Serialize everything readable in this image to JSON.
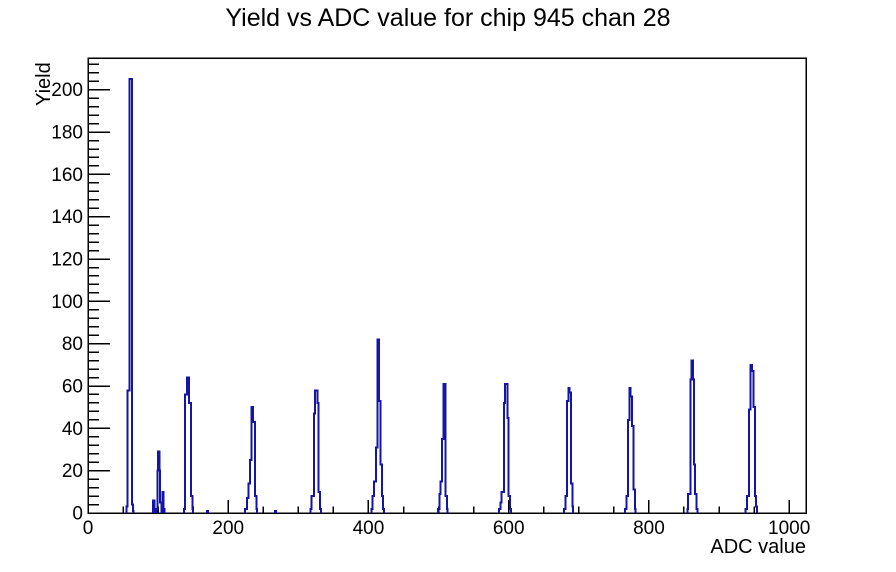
{
  "page": {
    "title": "Yield vs ADC value for chip 945 chan 28"
  },
  "chart_data": {
    "type": "bar",
    "style": "step-histogram",
    "title": "Yield vs ADC value for chip 945 chan 28",
    "xlabel": "ADC value",
    "ylabel": "Yield",
    "xlim": [
      0,
      1024
    ],
    "ylim": [
      0,
      215
    ],
    "x_major_ticks": [
      0,
      200,
      400,
      600,
      800,
      1000
    ],
    "x_minor_step": 50,
    "y_major_ticks": [
      0,
      20,
      40,
      60,
      80,
      100,
      120,
      140,
      160,
      180,
      200
    ],
    "y_minor_step": 4,
    "grid": false,
    "legend": false,
    "line_color": "#1414a6",
    "frame_color": "#000000",
    "background": "#ffffff",
    "peaks": [
      {
        "adc": 60,
        "yield": 205
      },
      {
        "adc": 100,
        "yield": 29
      },
      {
        "adc": 142,
        "yield": 64
      },
      {
        "adc": 234,
        "yield": 50
      },
      {
        "adc": 325,
        "yield": 58
      },
      {
        "adc": 414,
        "yield": 82
      },
      {
        "adc": 508,
        "yield": 61
      },
      {
        "adc": 596,
        "yield": 61
      },
      {
        "adc": 686,
        "yield": 59
      },
      {
        "adc": 773,
        "yield": 59
      },
      {
        "adc": 862,
        "yield": 72
      },
      {
        "adc": 946,
        "yield": 70
      }
    ],
    "bins": [
      [
        55,
        3
      ],
      [
        56,
        58
      ],
      [
        57,
        58
      ],
      [
        58,
        58
      ],
      [
        59,
        205
      ],
      [
        60,
        205
      ],
      [
        61,
        205
      ],
      [
        62,
        205
      ],
      [
        63,
        4
      ],
      [
        64,
        1
      ],
      [
        93,
        6
      ],
      [
        94,
        6
      ],
      [
        98,
        2
      ],
      [
        99,
        20
      ],
      [
        100,
        29
      ],
      [
        101,
        29
      ],
      [
        102,
        20
      ],
      [
        103,
        5
      ],
      [
        104,
        5
      ],
      [
        106,
        10
      ],
      [
        107,
        10
      ],
      [
        108,
        2
      ],
      [
        137,
        2
      ],
      [
        138,
        56
      ],
      [
        139,
        56
      ],
      [
        140,
        56
      ],
      [
        141,
        64
      ],
      [
        142,
        64
      ],
      [
        143,
        64
      ],
      [
        144,
        52
      ],
      [
        145,
        52
      ],
      [
        146,
        52
      ],
      [
        147,
        8
      ],
      [
        148,
        8
      ],
      [
        149,
        2
      ],
      [
        170,
        1
      ],
      [
        224,
        2
      ],
      [
        225,
        2
      ],
      [
        226,
        2
      ],
      [
        227,
        7
      ],
      [
        228,
        7
      ],
      [
        229,
        14
      ],
      [
        230,
        14
      ],
      [
        231,
        25
      ],
      [
        232,
        25
      ],
      [
        233,
        50
      ],
      [
        234,
        50
      ],
      [
        235,
        43
      ],
      [
        236,
        43
      ],
      [
        237,
        43
      ],
      [
        238,
        8
      ],
      [
        239,
        8
      ],
      [
        240,
        2
      ],
      [
        267,
        1
      ],
      [
        317,
        2
      ],
      [
        318,
        2
      ],
      [
        319,
        8
      ],
      [
        320,
        8
      ],
      [
        321,
        8
      ],
      [
        322,
        47
      ],
      [
        323,
        47
      ],
      [
        324,
        58
      ],
      [
        325,
        58
      ],
      [
        326,
        58
      ],
      [
        327,
        52
      ],
      [
        328,
        52
      ],
      [
        329,
        10
      ],
      [
        330,
        10
      ],
      [
        331,
        2
      ],
      [
        404,
        2
      ],
      [
        405,
        2
      ],
      [
        406,
        8
      ],
      [
        407,
        8
      ],
      [
        408,
        15
      ],
      [
        409,
        15
      ],
      [
        410,
        15
      ],
      [
        411,
        31
      ],
      [
        412,
        31
      ],
      [
        413,
        82
      ],
      [
        414,
        82
      ],
      [
        415,
        53
      ],
      [
        416,
        53
      ],
      [
        417,
        23
      ],
      [
        418,
        23
      ],
      [
        419,
        8
      ],
      [
        420,
        8
      ],
      [
        421,
        2
      ],
      [
        499,
        2
      ],
      [
        500,
        2
      ],
      [
        501,
        9
      ],
      [
        502,
        9
      ],
      [
        503,
        15
      ],
      [
        504,
        15
      ],
      [
        505,
        35
      ],
      [
        506,
        35
      ],
      [
        507,
        61
      ],
      [
        508,
        61
      ],
      [
        509,
        61
      ],
      [
        510,
        8
      ],
      [
        511,
        8
      ],
      [
        512,
        2
      ],
      [
        586,
        2
      ],
      [
        587,
        2
      ],
      [
        588,
        5
      ],
      [
        589,
        5
      ],
      [
        590,
        10
      ],
      [
        591,
        10
      ],
      [
        592,
        10
      ],
      [
        593,
        52
      ],
      [
        594,
        52
      ],
      [
        595,
        61
      ],
      [
        596,
        61
      ],
      [
        597,
        61
      ],
      [
        598,
        45
      ],
      [
        599,
        45
      ],
      [
        600,
        8
      ],
      [
        601,
        8
      ],
      [
        602,
        2
      ],
      [
        679,
        2
      ],
      [
        680,
        2
      ],
      [
        681,
        8
      ],
      [
        682,
        8
      ],
      [
        683,
        53
      ],
      [
        684,
        53
      ],
      [
        685,
        59
      ],
      [
        686,
        59
      ],
      [
        687,
        57
      ],
      [
        688,
        57
      ],
      [
        689,
        14
      ],
      [
        690,
        14
      ],
      [
        691,
        3
      ],
      [
        766,
        2
      ],
      [
        767,
        2
      ],
      [
        768,
        8
      ],
      [
        769,
        8
      ],
      [
        770,
        44
      ],
      [
        771,
        44
      ],
      [
        772,
        59
      ],
      [
        773,
        59
      ],
      [
        774,
        55
      ],
      [
        775,
        55
      ],
      [
        776,
        41
      ],
      [
        777,
        41
      ],
      [
        778,
        11
      ],
      [
        779,
        11
      ],
      [
        780,
        2
      ],
      [
        855,
        2
      ],
      [
        856,
        9
      ],
      [
        857,
        9
      ],
      [
        858,
        9
      ],
      [
        859,
        63
      ],
      [
        860,
        63
      ],
      [
        861,
        72
      ],
      [
        862,
        72
      ],
      [
        863,
        63
      ],
      [
        864,
        23
      ],
      [
        865,
        23
      ],
      [
        866,
        9
      ],
      [
        867,
        9
      ],
      [
        868,
        2
      ],
      [
        938,
        2
      ],
      [
        939,
        2
      ],
      [
        940,
        8
      ],
      [
        941,
        8
      ],
      [
        942,
        8
      ],
      [
        943,
        49
      ],
      [
        944,
        49
      ],
      [
        945,
        70
      ],
      [
        946,
        70
      ],
      [
        947,
        67
      ],
      [
        948,
        67
      ],
      [
        949,
        50
      ],
      [
        950,
        50
      ],
      [
        951,
        8
      ],
      [
        952,
        8
      ],
      [
        953,
        3
      ]
    ]
  }
}
